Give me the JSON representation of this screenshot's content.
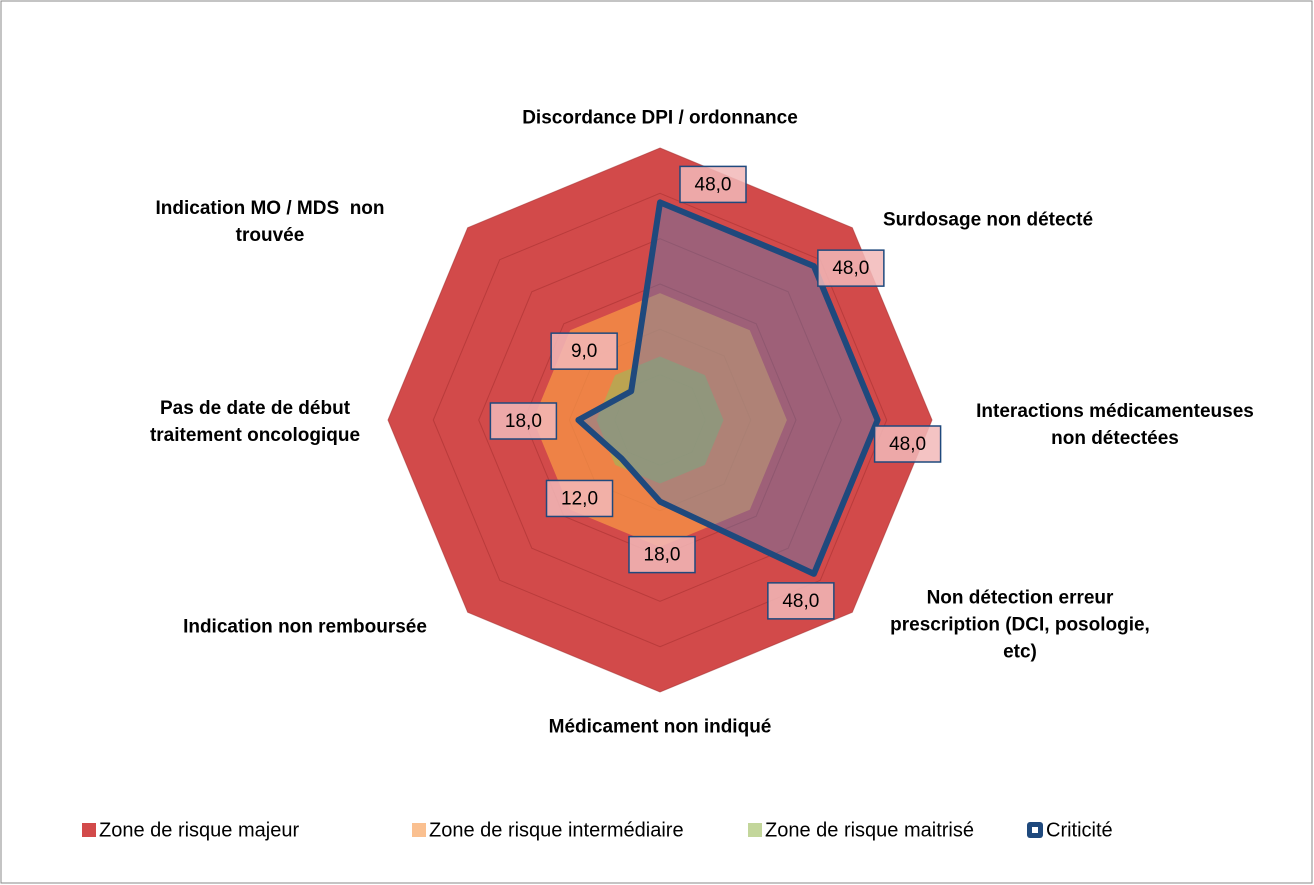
{
  "chart_data": {
    "type": "radar",
    "categories": [
      "Discordance DPI / ordonnance",
      "Surdosage non détecté",
      "Interactions médicamenteuses\nnon détectées",
      "Non détection erreur\nprescription (DCI, posologie,\netc)",
      "Médicament non indiqué",
      "Indication non remboursée",
      "Pas de date de début\ntraitement oncologique",
      "Indication MO / MDS  non\ntrouvée"
    ],
    "series": [
      {
        "name": "Zone de risque majeur",
        "color": "#d24a4a",
        "values": [
          60,
          60,
          60,
          60,
          60,
          60,
          60,
          60
        ]
      },
      {
        "name": "Zone de risque intermédiaire",
        "color": "#f79646",
        "values": [
          28,
          28,
          28,
          28,
          28,
          28,
          28,
          28
        ]
      },
      {
        "name": "Zone de risque maitrisé",
        "color": "#9bbb59",
        "values": [
          14,
          14,
          14,
          14,
          14,
          14,
          14,
          14
        ]
      },
      {
        "name": "Criticité",
        "color": "#1f497d",
        "values": [
          48,
          48,
          48,
          48,
          18,
          12,
          18,
          9
        ],
        "value_labels": [
          "48,0",
          "48,0",
          "48,0",
          "48,0",
          "18,0",
          "12,0",
          "18,0",
          "9,0"
        ]
      }
    ],
    "ylim": [
      0,
      60
    ],
    "yticks": [
      0,
      10,
      20,
      30,
      40,
      50,
      60
    ],
    "grid": true,
    "legend": "bottom"
  }
}
